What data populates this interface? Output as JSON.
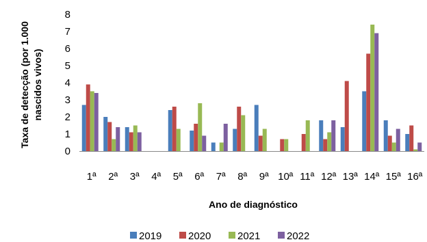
{
  "chart_data": {
    "type": "bar",
    "xlabel": "Ano de diagnóstico",
    "ylabel": "Taxa de detecção (por 1.000 nascidos vivos)",
    "ylabel_lines": [
      "Taxa de detecção (por 1.000",
      "nascidos vivos)"
    ],
    "ylim": [
      0,
      8
    ],
    "yticks": [
      "0",
      "1",
      "2",
      "3",
      "4",
      "5",
      "6",
      "7",
      "8"
    ],
    "grid": false,
    "legend_position": "bottom",
    "categories": [
      "1ª",
      "2ª",
      "3ª",
      "4ª",
      "5ª",
      "6ª",
      "7ª",
      "8ª",
      "9ª",
      "10ª",
      "11ª",
      "12ª",
      "13ª",
      "14ª",
      "15ª",
      "16ª"
    ],
    "series": [
      {
        "name": "2019",
        "color": "#4a7ebb",
        "values": [
          2.7,
          2.0,
          1.4,
          0,
          2.4,
          1.2,
          0.5,
          1.3,
          2.7,
          0,
          0,
          1.8,
          1.4,
          3.5,
          1.8,
          1.0
        ]
      },
      {
        "name": "2020",
        "color": "#be4b48",
        "values": [
          3.9,
          1.7,
          1.1,
          0,
          2.6,
          1.6,
          0,
          2.6,
          0.9,
          0.7,
          1.0,
          0.7,
          4.1,
          5.7,
          0.9,
          1.5
        ]
      },
      {
        "name": "2021",
        "color": "#98b954",
        "values": [
          3.5,
          0.7,
          1.5,
          0,
          1.3,
          2.8,
          0.5,
          2.1,
          1.3,
          0.7,
          1.8,
          1.1,
          0,
          7.4,
          0.5,
          0.1
        ]
      },
      {
        "name": "2022",
        "color": "#7d60a0",
        "values": [
          3.4,
          1.4,
          1.1,
          0,
          0,
          0.9,
          1.6,
          0,
          0,
          0,
          0,
          1.8,
          0,
          6.9,
          1.3,
          0.5
        ]
      }
    ]
  }
}
